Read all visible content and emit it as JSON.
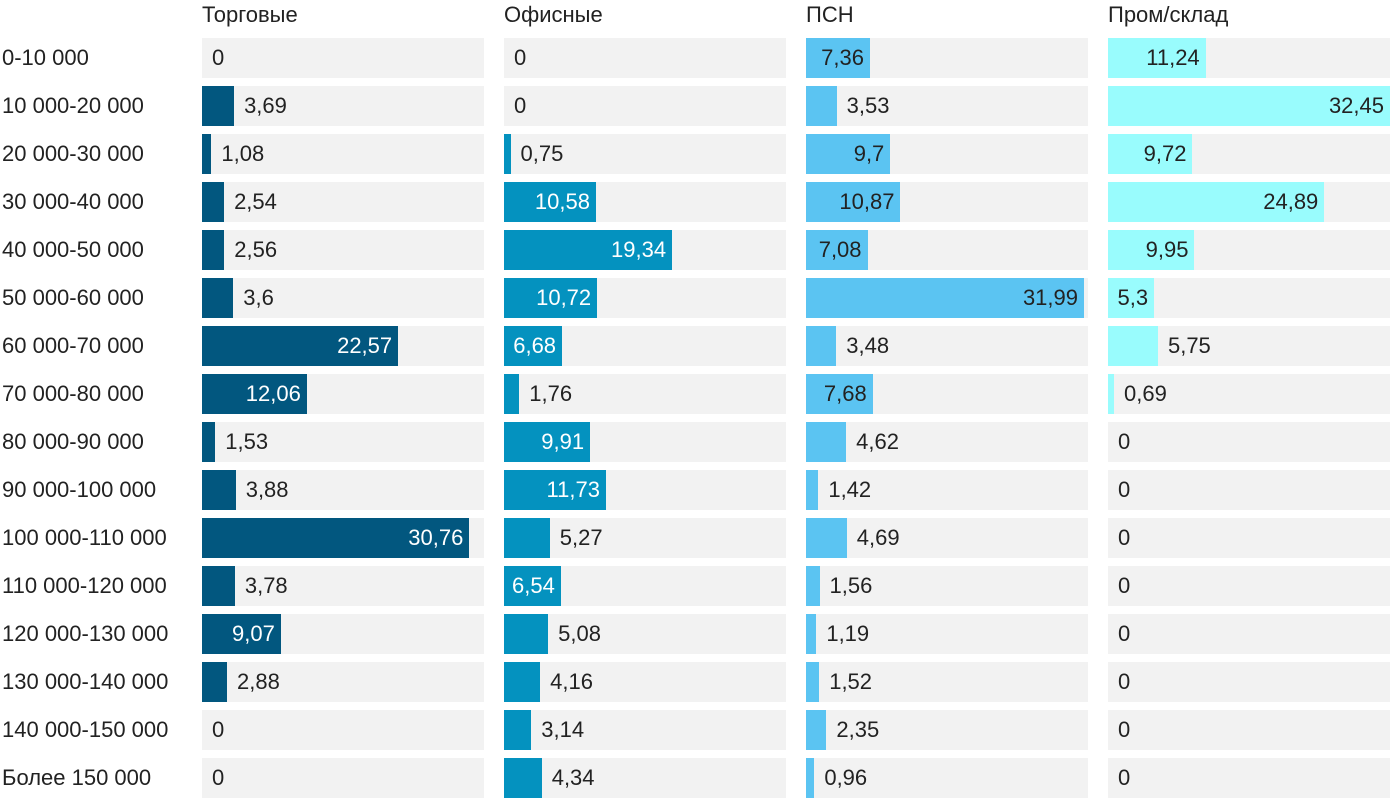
{
  "chart_data": {
    "type": "bar",
    "orientation": "horizontal",
    "layout": "small-multiples",
    "decimal_separator": ",",
    "categories": [
      "0-10 000",
      "10 000-20 000",
      "20 000-30 000",
      "30 000-40 000",
      "40 000-50 000",
      "50 000-60 000",
      "60 000-70 000",
      "70 000-80 000",
      "80 000-90 000",
      "90 000-100 000",
      "100 000-110 000",
      "110 000-120 000",
      "120 000-130 000",
      "130 000-140 000",
      "140 000-150 000",
      "Более 150 000"
    ],
    "series": [
      {
        "name": "Торговые",
        "color": "#02577f",
        "label_inside_color": "#ffffff",
        "values": [
          0,
          3.69,
          1.08,
          2.54,
          2.56,
          3.6,
          22.57,
          12.06,
          1.53,
          3.88,
          30.76,
          3.78,
          9.07,
          2.88,
          0,
          0
        ]
      },
      {
        "name": "Офисные",
        "color": "#0492bf",
        "label_inside_color": "#ffffff",
        "values": [
          0,
          0,
          0.75,
          10.58,
          19.34,
          10.72,
          6.68,
          1.76,
          9.91,
          11.73,
          5.27,
          6.54,
          5.08,
          4.16,
          3.14,
          4.34
        ]
      },
      {
        "name": "ПСН",
        "color": "#5bc4f2",
        "label_inside_color": "#222222",
        "values": [
          7.36,
          3.53,
          9.7,
          10.87,
          7.08,
          31.99,
          3.48,
          7.68,
          4.62,
          1.42,
          4.69,
          1.56,
          1.19,
          1.52,
          2.35,
          0.96
        ]
      },
      {
        "name": "Пром/склад",
        "color": "#99fcfd",
        "label_inside_color": "#222222",
        "values": [
          11.24,
          32.45,
          9.72,
          24.89,
          9.95,
          5.3,
          5.75,
          0.69,
          0,
          0,
          0,
          0,
          0,
          0,
          0,
          0
        ]
      }
    ]
  }
}
